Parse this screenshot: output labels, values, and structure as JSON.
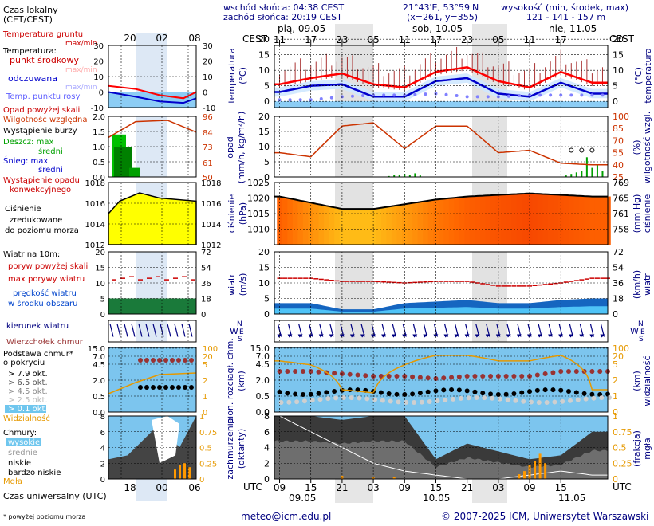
{
  "header": {
    "sunrise": "wschód słońca: 04:38 CEST",
    "sunset": "zachód słońca: 20:19 CEST",
    "coords": "21°43'E, 53°59'N",
    "grid": "(x=261, y=355)",
    "elevation_title": "wysokość (min, środek, max)",
    "elevation_values": "121 - 141 - 157 m",
    "tz_left": "CEST",
    "tz_right": "CEST",
    "utc_left": "UTC",
    "utc_right": "UTC"
  },
  "legend": {
    "local_time": "Czas lokalny",
    "local_time_tz": "(CET/CEST)",
    "ground_temp": "Temperatura gruntu",
    "ground_temp_maxmin": "max/min",
    "temperature": "Temperatura:",
    "mid_point": "punkt środkowy",
    "mid_maxmin": "max/min",
    "perceived": "odczuwana",
    "perceived_maxmin": "max/min",
    "dew_point": "Temp. punktu rosy",
    "precip_above": "Opad powyżej skali",
    "humidity": "Wilgotność względna",
    "storm": "Wystąpienie burzy",
    "rain_max": "Deszcz: max",
    "rain_mean": "średni",
    "snow_max": "Śnieg:   max",
    "snow_mean": "średni",
    "conv": "Wystąpienie opadu",
    "conv2": "konwekcyjnego",
    "press1": "Ciśnienie",
    "press2": "zredukowane",
    "press3": "do poziomu morza",
    "wind_title": "Wiatr na 10m:",
    "gust_above": "poryw powyżej skali",
    "gust_max": "max porywy wiatru",
    "wind_speed": "prędkość wiatru",
    "wind_speed2": "w środku obszaru",
    "wind_dir": "kierunek wiatru",
    "cloud_top": "Wierzchołek chmur",
    "cloud_base1": "Podstawa chmur*",
    "cloud_base2": "o pokryciu",
    "okt79": "> 7.9 okt.",
    "okt65": "> 6.5 okt.",
    "okt45": "> 4.5 okt.",
    "okt25": "> 2.5 okt.",
    "okt01": "> 0.1 okt.",
    "visibility": "Widzialność",
    "clouds": "Chmury:",
    "high": "wysokie",
    "mid": "średnie",
    "low": "niskie",
    "vlow": "bardzo niskie",
    "fog": "Mgła",
    "utc_label": "Czas uniwersalny (UTC)",
    "footnote": "* powyżej poziomu morza"
  },
  "panel_titles": {
    "temp_l1": "temperatura",
    "temp_l2": "(°C)",
    "temp_r": "(°C)",
    "precip_l1": "opad",
    "precip_l2": "(mm/h, kg/m²/h)",
    "precip_r1": "(%)",
    "precip_r2": "wilgotność wzgl.",
    "press_l1": "ciśnienie",
    "press_l2": "(hPa)",
    "press_r1": "(mm Hg)",
    "press_r2": "ciśnienie",
    "wind_l1": "wiatr",
    "wind_l2": "(m/s)",
    "wind_r1": "(km/h)",
    "wind_r2": "wiatr",
    "cloud_l1": "pion. rozciągł. chm.",
    "cloud_l2": "(km)",
    "cloud_r1": "(km)",
    "cloud_r2": "widzialność",
    "cover_l1": "zachmurzenie",
    "cover_l2": "(oktanty)",
    "cover_r1": "(frakcja)",
    "cover_r2": "mgła",
    "compass_n": "N",
    "compass_w": "W",
    "compass_e": "E",
    "compass_s": "S"
  },
  "days": [
    {
      "label": "pią, 09.05",
      "utc": "09.05"
    },
    {
      "label": "sob, 10.05",
      "utc": "10.05"
    },
    {
      "label": "nie, 11.05",
      "utc": "11.05"
    }
  ],
  "top_ticks": [
    "11",
    "17",
    "23",
    "05",
    "11",
    "17",
    "23",
    "05",
    "11",
    "17"
  ],
  "bottom_ticks": [
    "09",
    "15",
    "21",
    "03",
    "09",
    "15",
    "21",
    "03",
    "09",
    "15"
  ],
  "mini_top_ticks": [
    "20",
    "02",
    "08"
  ],
  "mini_bottom_ticks": [
    "18",
    "00",
    "06"
  ],
  "footer": {
    "email": "meteo@icm.edu.pl",
    "copyright": "© 2007-2025 ICM, Uniwersytet Warszawski"
  },
  "colors": {
    "temp": "#ff0000",
    "perceived": "#0000cc",
    "dew": "#8080ff",
    "humidity": "#cc3300",
    "rain": "#00a000",
    "pressure_fill": "#ffdd00",
    "wind": "#0044cc",
    "cloud_top": "#993333",
    "visibility": "#e69900",
    "night": "#d8d8d8",
    "sky": "#8ccdf5"
  },
  "chart_data": [
    {
      "type": "line",
      "panel": "temperature",
      "unit": "°C",
      "ylim": [
        -10,
        20
      ],
      "yticks": [
        0,
        5,
        10,
        15,
        20
      ],
      "left_ticks_mini": [
        -10,
        0,
        10,
        20,
        30
      ],
      "x_hours": [
        0,
        6,
        12,
        18,
        24,
        30,
        36,
        42,
        48,
        54,
        60
      ],
      "series": [
        {
          "name": "punkt środkowy",
          "values": [
            5.5,
            7.5,
            9.0,
            5.5,
            4.5,
            9.5,
            11.0,
            6.5,
            4.5,
            9.5,
            6.0
          ]
        },
        {
          "name": "odczuwana",
          "values": [
            3.0,
            5.0,
            5.5,
            1.5,
            1.5,
            6.5,
            7.5,
            2.5,
            1.5,
            6.0,
            2.5
          ]
        },
        {
          "name": "Temp. punktu rosy",
          "values": [
            0.5,
            0.5,
            1.5,
            2.0,
            2.0,
            2.5,
            1.5,
            1.5,
            2.0,
            2.0,
            2.0
          ]
        }
      ]
    },
    {
      "type": "line",
      "panel": "precipitation",
      "unit": "mm/h",
      "ylim": [
        0,
        20
      ],
      "yticks": [
        0,
        5,
        10,
        15,
        20
      ],
      "right_ticks": [
        25,
        40,
        55,
        70,
        85,
        100
      ],
      "x_hours": [
        0,
        6,
        12,
        18,
        24,
        30,
        36,
        42,
        48,
        54,
        60
      ],
      "series": [
        {
          "name": "Wilgotność względna",
          "values": [
            55,
            50,
            88,
            92,
            60,
            88,
            88,
            55,
            58,
            42,
            40
          ]
        }
      ]
    },
    {
      "type": "area",
      "panel": "pressure",
      "unit": "hPa",
      "ylim": [
        1005,
        1025
      ],
      "yticks": [
        1010,
        1015,
        1020,
        1025
      ],
      "right_ticks": [
        758,
        761,
        765,
        769
      ],
      "x_hours": [
        0,
        6,
        12,
        18,
        24,
        30,
        36,
        42,
        48,
        54,
        60
      ],
      "values": [
        1020.5,
        1018.5,
        1016.5,
        1016.5,
        1018.0,
        1019.5,
        1020.5,
        1021.0,
        1021.5,
        1021.0,
        1020.5
      ]
    },
    {
      "type": "line",
      "panel": "wind",
      "unit": "m/s",
      "ylim": [
        0,
        20
      ],
      "yticks": [
        0,
        5,
        10,
        15,
        20
      ],
      "right_ticks": [
        0,
        18,
        36,
        54,
        72
      ],
      "x_hours": [
        0,
        6,
        12,
        18,
        24,
        30,
        36,
        42,
        48,
        54,
        60
      ],
      "series": [
        {
          "name": "prędkość wiatru",
          "values": [
            3.5,
            3.5,
            1.5,
            1.5,
            3.5,
            4.0,
            4.5,
            3.5,
            3.5,
            4.5,
            5.0
          ]
        },
        {
          "name": "max porywy wiatru",
          "values": [
            11.5,
            11.5,
            10.5,
            10.5,
            10.0,
            10.5,
            10.5,
            9.0,
            9.0,
            10.0,
            11.5
          ]
        }
      ]
    },
    {
      "type": "line",
      "panel": "cloud",
      "unit": "km",
      "ylim": [
        0,
        15
      ],
      "yticks": [
        0,
        0.5,
        2.0,
        4.5,
        7.0,
        15.0
      ],
      "right_ticks": [
        0,
        1,
        2,
        5,
        20,
        100
      ],
      "x_hours": [
        0,
        6,
        12,
        18,
        24,
        30,
        36,
        42,
        48,
        54,
        60
      ],
      "series": [
        {
          "name": "Wierzchołek chmur",
          "values": [
            7.0,
            7.0,
            6.5,
            6.0,
            6.0,
            5.5,
            6.0,
            6.0,
            6.0,
            7.0,
            7.0
          ]
        },
        {
          "name": "Widzialność",
          "values": [
            40,
            30,
            5,
            4,
            30,
            60,
            60,
            40,
            40,
            60,
            5
          ]
        }
      ]
    },
    {
      "type": "area",
      "panel": "cloud_cover",
      "unit": "oktanty",
      "ylim": [
        0,
        8
      ],
      "yticks": [
        0,
        2,
        4,
        6,
        8
      ],
      "right_ticks": [
        0,
        0.25,
        0.5,
        0.75,
        1
      ],
      "x_hours": [
        0,
        6,
        12,
        18,
        24,
        30,
        36,
        42,
        48,
        54,
        60
      ],
      "series": [
        {
          "name": "niskie",
          "values": [
            8,
            8,
            7.5,
            8,
            8,
            2.5,
            4.5,
            3.5,
            2.5,
            3.0,
            6.0
          ]
        },
        {
          "name": "wysokie",
          "values": [
            8,
            6,
            4,
            2,
            1,
            0.5,
            0,
            0,
            0.5,
            1,
            0.5
          ]
        }
      ]
    }
  ]
}
